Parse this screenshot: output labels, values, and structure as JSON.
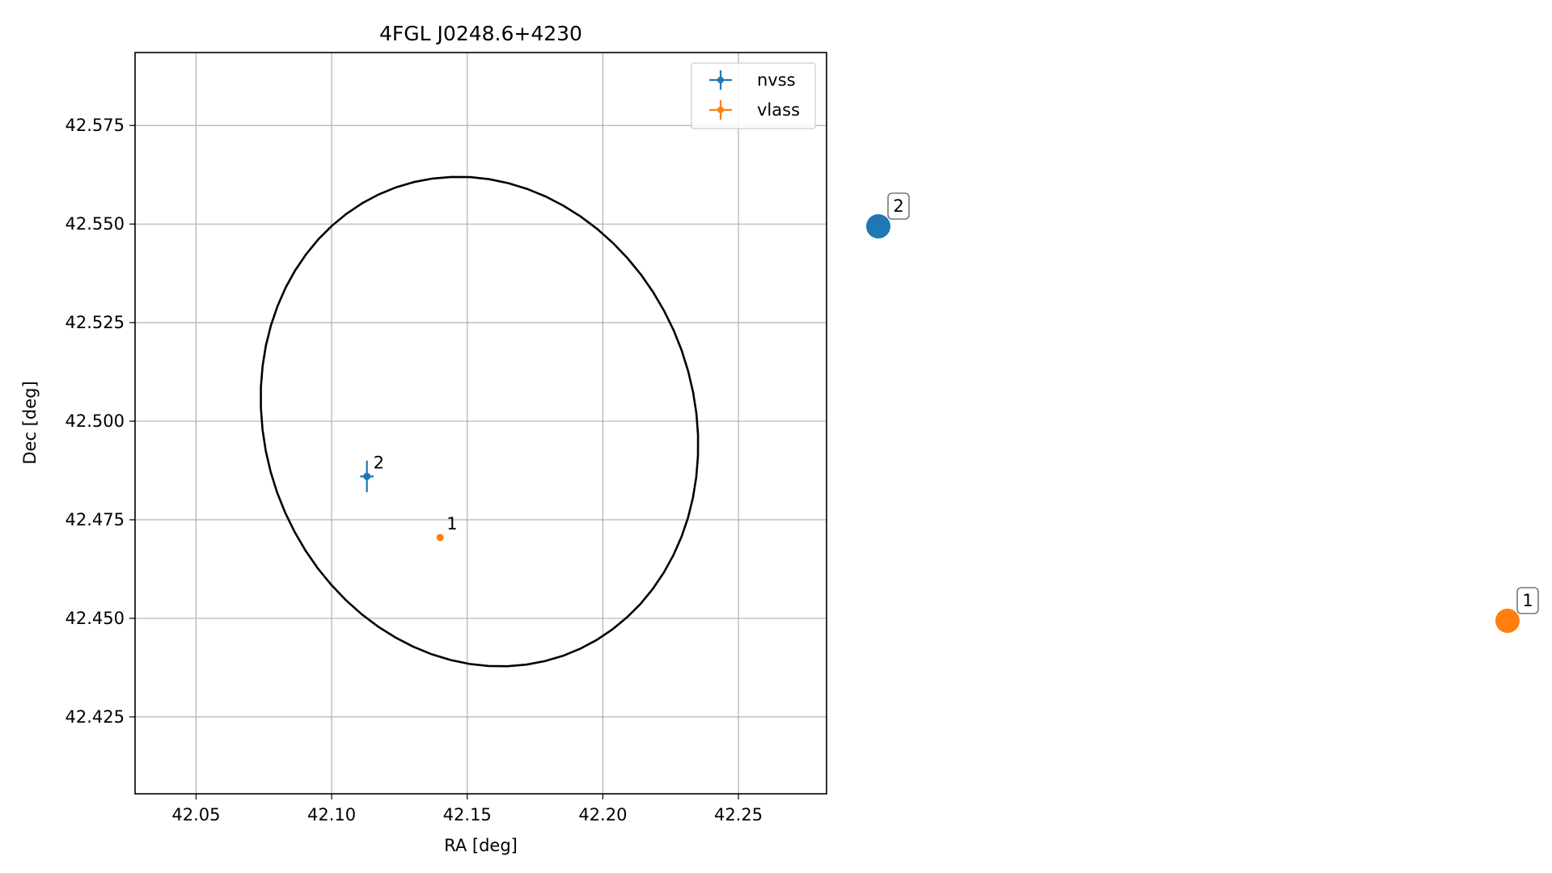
{
  "chart_data": {
    "type": "scatter",
    "title": "4FGL J0248.6+4230",
    "xlabel": "RA [deg]",
    "ylabel": "Dec [deg]",
    "xlim": [
      42.0275,
      42.2825
    ],
    "ylim": [
      42.4055,
      42.5935
    ],
    "xticks": [
      42.05,
      42.1,
      42.15,
      42.2,
      42.25
    ],
    "xtick_labels": [
      "42.05",
      "42.10",
      "42.15",
      "42.20",
      "42.25"
    ],
    "yticks": [
      42.425,
      42.45,
      42.475,
      42.5,
      42.525,
      42.55,
      42.575
    ],
    "ytick_labels": [
      "42.425",
      "42.450",
      "42.475",
      "42.500",
      "42.525",
      "42.550",
      "42.575"
    ],
    "grid": true,
    "legend_position": "top-right",
    "series": [
      {
        "name": "nvss",
        "color": "#1f77b4",
        "points": [
          {
            "x": 42.113,
            "y": 42.486,
            "xerr": 0.0025,
            "yerr": 0.004,
            "label": "2"
          }
        ]
      },
      {
        "name": "vlass",
        "color": "#ff7f0e",
        "points": [
          {
            "x": 42.14,
            "y": 42.4705,
            "xerr": 0.0004,
            "yerr": 0.0004,
            "label": "1"
          }
        ]
      }
    ],
    "ellipse": {
      "color": "#000000",
      "center": [
        42.1545,
        42.4999
      ],
      "semi_x": 0.0812,
      "semi_y": 0.0614,
      "tilt_deg": -10
    },
    "side_markers": [
      {
        "label": "2",
        "color": "#1f77b4"
      },
      {
        "label": "1",
        "color": "#ff7f0e"
      }
    ]
  }
}
